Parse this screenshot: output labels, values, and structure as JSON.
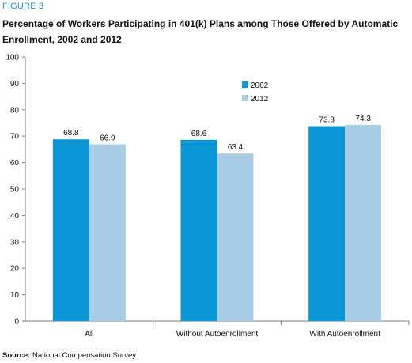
{
  "figure_label": "FIGURE 3",
  "source_label": "Source:",
  "source_text": "National Compensation Survey.",
  "colors": {
    "s2002": "#0a96d6",
    "s2012": "#a9cde4",
    "axis": "#7a7a7a"
  },
  "chart_data": {
    "type": "bar",
    "title": "Percentage of Workers Participating in 401(k) Plans among Those Offered by Automatic Enrollment, 2002 and 2012",
    "xlabel": "",
    "ylabel": "",
    "ylim": [
      0,
      100
    ],
    "yticks": [
      0,
      10,
      20,
      30,
      40,
      50,
      60,
      70,
      80,
      90,
      100
    ],
    "categories": [
      "All",
      "Without Autoenrollment",
      "With Autoenrollment"
    ],
    "series": [
      {
        "name": "2002",
        "values": [
          68.8,
          68.6,
          73.8
        ],
        "labels": [
          "68.8",
          "68.6",
          "73.8"
        ]
      },
      {
        "name": "2012",
        "values": [
          66.9,
          63.4,
          74.3
        ],
        "labels": [
          "66.9",
          "63.4",
          "74.3"
        ]
      }
    ],
    "legend_position": "top-center",
    "grid": false
  }
}
